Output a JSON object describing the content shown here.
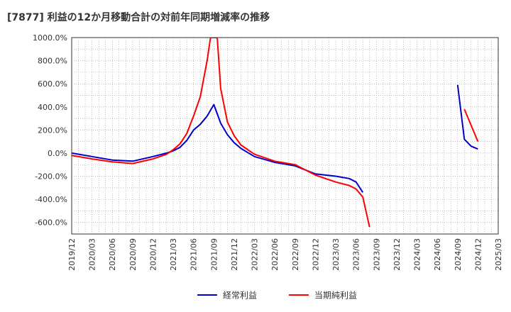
{
  "chart_data": {
    "type": "line",
    "title": "[7877]  利益の12か月移動合計の対前年同期増減率の推移",
    "xlabel": "",
    "ylabel": "",
    "ylim": [
      -700,
      1000
    ],
    "y_ticks": [
      1000,
      800,
      600,
      400,
      200,
      0,
      -200,
      -400,
      -600
    ],
    "y_tick_labels": [
      "1000.0%",
      "800.0%",
      "600.0%",
      "400.0%",
      "200.0%",
      "0.0%",
      "-200.0%",
      "-400.0%",
      "-600.0%"
    ],
    "x_tick_labels": [
      "2019/12",
      "2020/03",
      "2020/06",
      "2020/09",
      "2020/12",
      "2021/03",
      "2021/06",
      "2021/09",
      "2021/12",
      "2022/03",
      "2022/06",
      "2022/09",
      "2022/12",
      "2023/03",
      "2023/06",
      "2023/09",
      "2023/12",
      "2024/03",
      "2024/06",
      "2024/09",
      "2024/12",
      "2025/03"
    ],
    "x_range_months": [
      0,
      63
    ],
    "grid": true,
    "legend_position": "bottom",
    "series": [
      {
        "name": "経常利益",
        "color": "#0000cc",
        "points": [
          [
            0,
            0
          ],
          [
            3,
            -30
          ],
          [
            6,
            -60
          ],
          [
            9,
            -70
          ],
          [
            12,
            -30
          ],
          [
            14,
            0
          ],
          [
            15,
            20
          ],
          [
            16,
            50
          ],
          [
            17,
            110
          ],
          [
            18,
            200
          ],
          [
            19,
            250
          ],
          [
            20,
            320
          ],
          [
            21,
            420
          ],
          [
            22,
            260
          ],
          [
            23,
            160
          ],
          [
            24,
            90
          ],
          [
            25,
            40
          ],
          [
            27,
            -30
          ],
          [
            30,
            -80
          ],
          [
            33,
            -110
          ],
          [
            36,
            -180
          ],
          [
            39,
            -200
          ],
          [
            41,
            -220
          ],
          [
            42,
            -250
          ],
          [
            43,
            -340
          ],
          [
            57,
            590
          ],
          [
            58,
            120
          ],
          [
            59,
            60
          ],
          [
            60,
            35
          ]
        ]
      },
      {
        "name": "当期純利益",
        "color": "#ff0000",
        "points": [
          [
            0,
            -20
          ],
          [
            3,
            -50
          ],
          [
            6,
            -75
          ],
          [
            9,
            -90
          ],
          [
            12,
            -50
          ],
          [
            14,
            -10
          ],
          [
            15,
            30
          ],
          [
            16,
            80
          ],
          [
            17,
            170
          ],
          [
            18,
            320
          ],
          [
            19,
            490
          ],
          [
            20,
            800
          ],
          [
            20.5,
            1000
          ],
          [
            21.5,
            1000
          ],
          [
            22,
            560
          ],
          [
            23,
            270
          ],
          [
            24,
            150
          ],
          [
            25,
            70
          ],
          [
            27,
            -10
          ],
          [
            30,
            -70
          ],
          [
            33,
            -100
          ],
          [
            36,
            -190
          ],
          [
            39,
            -250
          ],
          [
            41,
            -280
          ],
          [
            42,
            -310
          ],
          [
            43,
            -380
          ],
          [
            44,
            -640
          ],
          [
            58,
            380
          ],
          [
            60,
            100
          ]
        ]
      }
    ]
  }
}
